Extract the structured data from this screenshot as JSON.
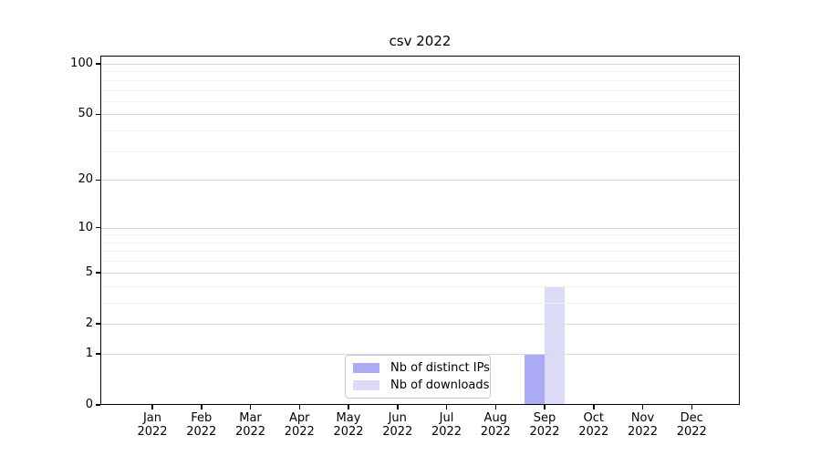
{
  "title": "csv 2022",
  "chart_data": {
    "type": "bar",
    "title": "csv 2022",
    "categories": [
      "Jan",
      "Feb",
      "Mar",
      "Apr",
      "May",
      "Jun",
      "Jul",
      "Aug",
      "Sep",
      "Oct",
      "Nov",
      "Dec"
    ],
    "category_year": "2022",
    "series": [
      {
        "name": "Nb of distinct IPs",
        "color": "#aaaaf5",
        "values": [
          0,
          0,
          0,
          0,
          0,
          0,
          0,
          0,
          1,
          0,
          0,
          0
        ]
      },
      {
        "name": "Nb of downloads",
        "color": "#dbdbf8",
        "values": [
          0,
          0,
          0,
          0,
          0,
          0,
          0,
          0,
          4,
          0,
          0,
          0
        ]
      }
    ],
    "xlabel": "",
    "ylabel": "",
    "y_axis": {
      "scale": "log1p",
      "major_ticks": [
        0,
        1,
        2,
        5,
        10,
        20,
        50,
        100
      ],
      "minor_gridlines": [
        3,
        4,
        6,
        7,
        8,
        9,
        30,
        40,
        60,
        70,
        80,
        90
      ],
      "ylim": [
        0,
        110
      ]
    },
    "grid": "both",
    "legend_position": "lower center",
    "colors": {
      "major_grid": "#d9d9d9",
      "minor_grid": "#f1f1f1",
      "spine": "#000000",
      "text": "#000000",
      "background": "#ffffff"
    }
  }
}
